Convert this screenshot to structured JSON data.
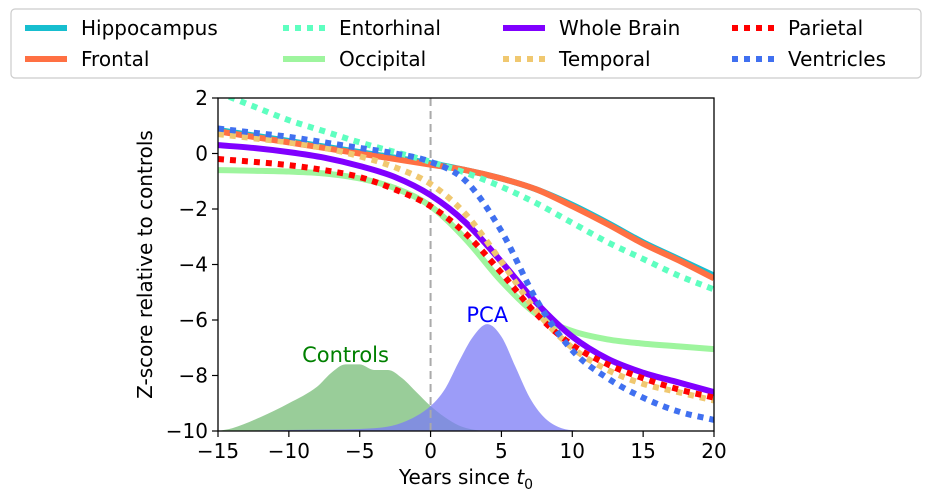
{
  "chart_data": {
    "type": "line",
    "title": "",
    "xlabel": "Years since t",
    "xlabel_subscript": "0",
    "ylabel": "Z-score relative to controls",
    "xlim": [
      -15,
      20
    ],
    "ylim": [
      -10,
      2
    ],
    "x_ticks": [
      -15,
      -10,
      -5,
      0,
      5,
      10,
      15,
      20
    ],
    "y_ticks": [
      -10,
      -8,
      -6,
      -4,
      -2,
      0,
      2
    ],
    "grid": false,
    "legend_placement": "top, above plot, 4 columns",
    "vertical_reference_line": {
      "x": 0,
      "color": "#aaaaaa",
      "style": "dashed"
    },
    "x": [
      -15,
      -12.5,
      -10,
      -7.5,
      -5,
      -2.5,
      0,
      2.5,
      5,
      7.5,
      10,
      12.5,
      15,
      17.5,
      20
    ],
    "series": [
      {
        "name": "Hippocampus",
        "color": "#17becf",
        "style": "solid",
        "values": [
          0.85,
          0.65,
          0.45,
          0.25,
          0.05,
          -0.15,
          -0.35,
          -0.6,
          -0.9,
          -1.3,
          -1.85,
          -2.5,
          -3.2,
          -3.8,
          -4.4
        ]
      },
      {
        "name": "Frontal",
        "color": "#ff7043",
        "style": "solid",
        "values": [
          0.8,
          0.6,
          0.4,
          0.2,
          0.0,
          -0.2,
          -0.4,
          -0.6,
          -0.9,
          -1.3,
          -1.9,
          -2.55,
          -3.25,
          -3.85,
          -4.5
        ]
      },
      {
        "name": "Entorhinal",
        "color": "#5effc0",
        "style": "dotted",
        "values": [
          2.2,
          1.7,
          1.2,
          0.8,
          0.4,
          0.05,
          -0.3,
          -0.7,
          -1.2,
          -1.8,
          -2.5,
          -3.2,
          -3.8,
          -4.4,
          -4.9
        ]
      },
      {
        "name": "Occipital",
        "color": "#9ef59e",
        "style": "solid",
        "values": [
          -0.6,
          -0.62,
          -0.65,
          -0.72,
          -0.9,
          -1.25,
          -1.9,
          -3.1,
          -4.6,
          -5.8,
          -6.4,
          -6.7,
          -6.85,
          -6.95,
          -7.05
        ]
      },
      {
        "name": "Whole Brain",
        "color": "#8000ff",
        "style": "solid",
        "values": [
          0.3,
          0.2,
          0.05,
          -0.15,
          -0.45,
          -0.85,
          -1.5,
          -2.5,
          -3.9,
          -5.4,
          -6.6,
          -7.4,
          -7.9,
          -8.25,
          -8.6
        ]
      },
      {
        "name": "Temporal",
        "color": "#f0c870",
        "style": "dotted",
        "values": [
          0.7,
          0.55,
          0.4,
          0.2,
          -0.1,
          -0.5,
          -1.1,
          -2.2,
          -3.9,
          -5.7,
          -7.0,
          -7.8,
          -8.3,
          -8.6,
          -8.9
        ]
      },
      {
        "name": "Parietal",
        "color": "#ff0000",
        "style": "dotted",
        "values": [
          -0.2,
          -0.3,
          -0.42,
          -0.6,
          -0.85,
          -1.3,
          -1.9,
          -2.9,
          -4.3,
          -5.8,
          -6.9,
          -7.6,
          -8.1,
          -8.5,
          -8.8
        ]
      },
      {
        "name": "Ventricles",
        "color": "#4070f0",
        "style": "dotted",
        "values": [
          0.9,
          0.75,
          0.6,
          0.4,
          0.2,
          0.0,
          -0.3,
          -1.0,
          -2.8,
          -5.3,
          -7.1,
          -8.1,
          -8.8,
          -9.3,
          -9.6
        ]
      }
    ],
    "distributions": [
      {
        "label": "Controls",
        "label_color": "#008000",
        "fill": "#80c080",
        "opacity": 0.8,
        "x": [
          -15,
          -14,
          -12,
          -10,
          -8,
          -7,
          -6,
          -5,
          -4,
          -3,
          -2,
          -1,
          0,
          1,
          2,
          3,
          4
        ],
        "y": [
          -10,
          -9.9,
          -9.5,
          -9.0,
          -8.4,
          -7.9,
          -7.6,
          -7.6,
          -7.8,
          -7.8,
          -8.1,
          -8.6,
          -9.1,
          -9.5,
          -9.8,
          -9.95,
          -10
        ]
      },
      {
        "label": "PCA",
        "label_color": "#0000ff",
        "fill": "#7b7bf5",
        "opacity": 0.75,
        "x": [
          -15,
          -8,
          -4,
          -2,
          0,
          1,
          2,
          3,
          4,
          5,
          6,
          7,
          8,
          9,
          10,
          12
        ],
        "y": [
          -10,
          -9.95,
          -9.9,
          -9.7,
          -9.1,
          -8.5,
          -7.5,
          -6.6,
          -6.15,
          -6.6,
          -7.7,
          -8.8,
          -9.5,
          -9.85,
          -9.97,
          -10
        ]
      }
    ],
    "legend_columns": [
      [
        "Hippocampus",
        "Frontal"
      ],
      [
        "Entorhinal",
        "Occipital"
      ],
      [
        "Whole Brain",
        "Temporal"
      ],
      [
        "Parietal",
        "Ventricles"
      ]
    ]
  }
}
